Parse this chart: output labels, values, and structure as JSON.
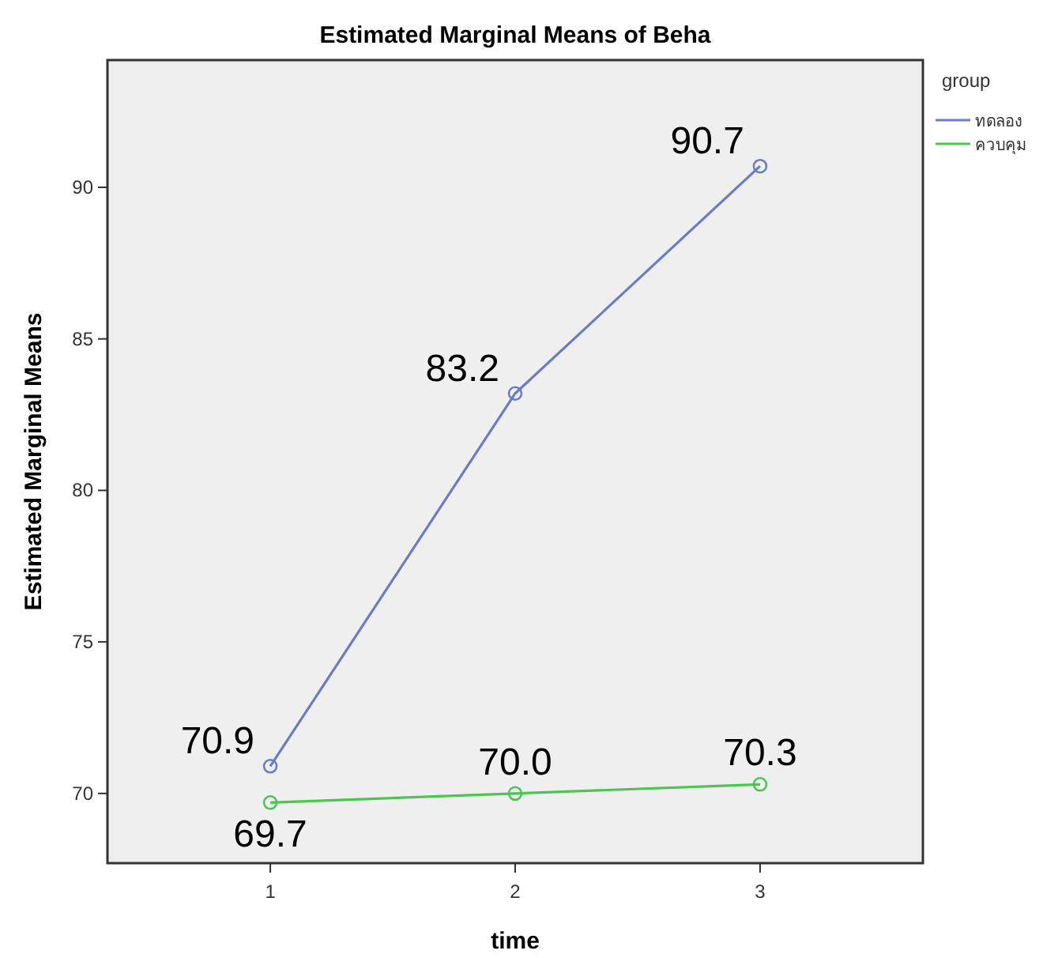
{
  "chart_data": {
    "type": "line",
    "title": "Estimated Marginal Means of Beha",
    "xlabel": "time",
    "ylabel": "Estimated Marginal Means",
    "legend_title": "group",
    "legend": "top right",
    "marker": "circle",
    "line_style": "solid",
    "grid": false,
    "x": [
      1,
      2,
      3
    ],
    "xlim": [
      0.335,
      3.665
    ],
    "xticks": [
      1,
      2,
      3
    ],
    "ylim": [
      67.7,
      94.2
    ],
    "yticks": [
      70,
      75,
      80,
      85,
      90
    ],
    "series": [
      {
        "name": "ทดลอง",
        "color": "#6a7cc6",
        "values": [
          70.9,
          83.2,
          90.7
        ],
        "value_labels": [
          "70.9",
          "83.2",
          "90.7"
        ]
      },
      {
        "name": "ควบคุม",
        "color": "#4cc552",
        "values": [
          69.7,
          70.0,
          70.3
        ],
        "value_labels": [
          "69.7",
          "70.0",
          "70.3"
        ]
      }
    ]
  }
}
